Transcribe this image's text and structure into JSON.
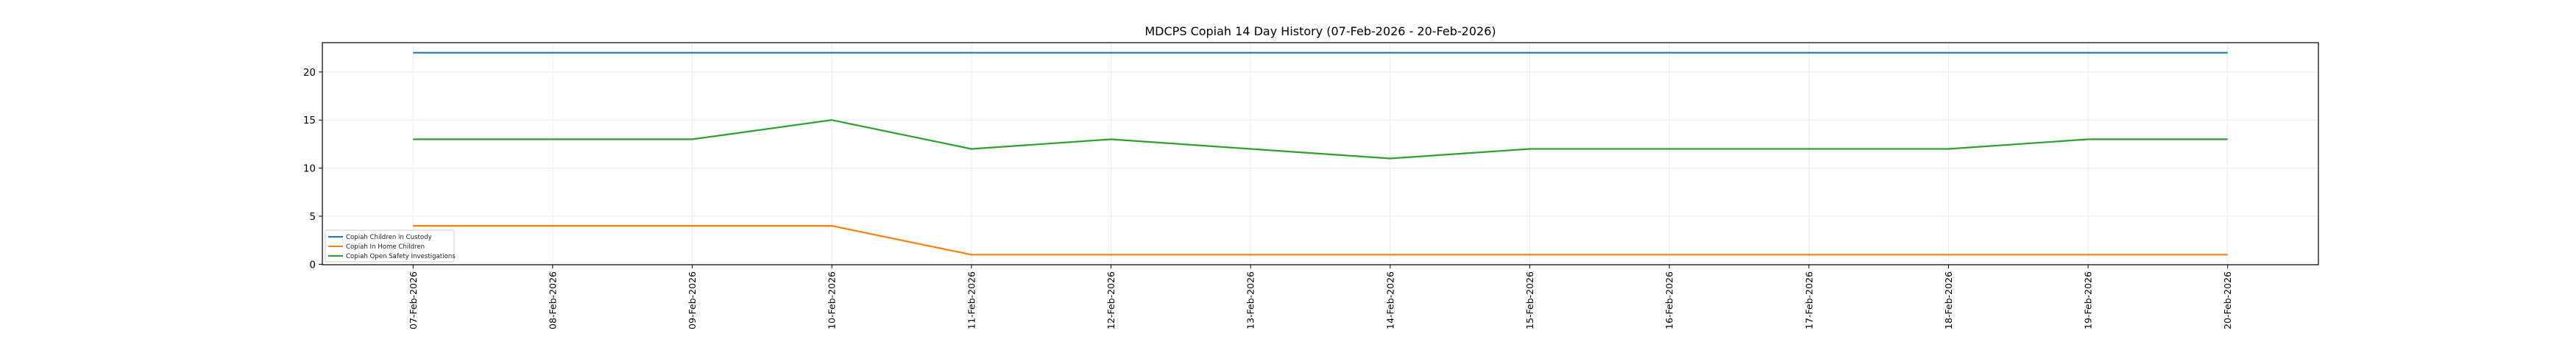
{
  "chart_data": {
    "type": "line",
    "title": "MDCPS Copiah 14 Day History (07-Feb-2026 - 20-Feb-2026)",
    "xlabel": "",
    "ylabel": "",
    "x": [
      "07-Feb-2026",
      "08-Feb-2026",
      "09-Feb-2026",
      "10-Feb-2026",
      "11-Feb-2026",
      "12-Feb-2026",
      "13-Feb-2026",
      "14-Feb-2026",
      "15-Feb-2026",
      "16-Feb-2026",
      "17-Feb-2026",
      "18-Feb-2026",
      "19-Feb-2026",
      "20-Feb-2026"
    ],
    "ylim": [
      -0.05,
      23.05
    ],
    "yticks": [
      0,
      5,
      10,
      15,
      20
    ],
    "grid": true,
    "legend_position": "lower-left",
    "series": [
      {
        "name": "Copiah Children in Custody",
        "color": "#1f77b4",
        "values": [
          22,
          22,
          22,
          22,
          22,
          22,
          22,
          22,
          22,
          22,
          22,
          22,
          22,
          22
        ]
      },
      {
        "name": "Copiah In Home Children",
        "color": "#ff7f0e",
        "values": [
          4,
          4,
          4,
          4,
          1,
          1,
          1,
          1,
          1,
          1,
          1,
          1,
          1,
          1
        ]
      },
      {
        "name": "Copiah Open Safety Investigations",
        "color": "#2ca02c",
        "values": [
          13,
          13,
          13,
          15,
          12,
          13,
          12,
          11,
          12,
          12,
          12,
          12,
          13,
          13
        ]
      }
    ]
  }
}
